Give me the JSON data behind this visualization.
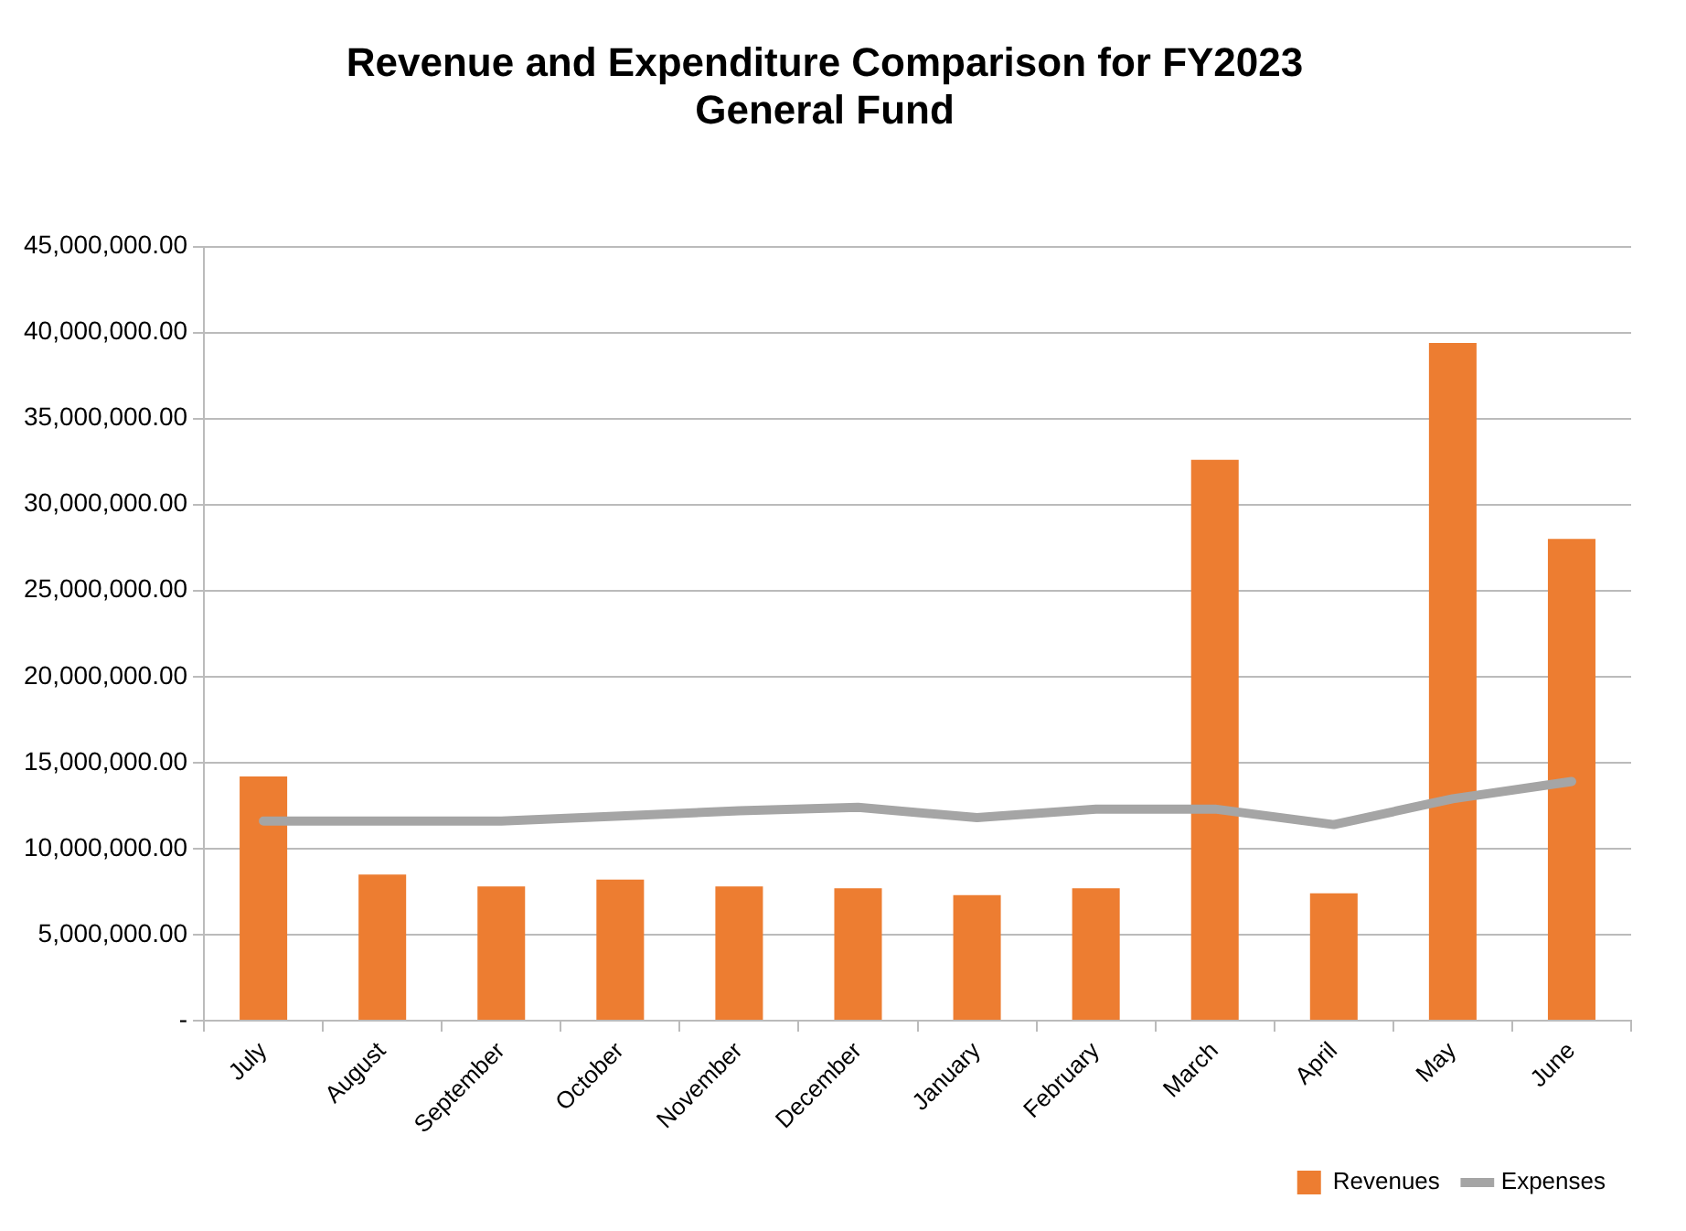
{
  "chart_data": {
    "type": "bar",
    "title": "Revenue and Expenditure Comparison for FY2023",
    "subtitle": "General Fund",
    "categories": [
      "July",
      "August",
      "September",
      "October",
      "November",
      "December",
      "January",
      "February",
      "March",
      "April",
      "May",
      "June"
    ],
    "series": [
      {
        "name": "Revenues",
        "color": "#ed7d31",
        "values": [
          14200000,
          8500000,
          7800000,
          8200000,
          7800000,
          7700000,
          7300000,
          7700000,
          32600000,
          7400000,
          39400000,
          28000000
        ]
      },
      {
        "name": "Expenses",
        "type": "line",
        "color": "#a5a5a5",
        "values": [
          11600000,
          11600000,
          11600000,
          11900000,
          12200000,
          12400000,
          11800000,
          12300000,
          12300000,
          11400000,
          12900000,
          13900000
        ]
      }
    ],
    "ylim": [
      0,
      45000000
    ],
    "yticks": [
      {
        "value": 0,
        "label": "-"
      },
      {
        "value": 5000000,
        "label": "5,000,000.00"
      },
      {
        "value": 10000000,
        "label": "10,000,000.00"
      },
      {
        "value": 15000000,
        "label": "15,000,000.00"
      },
      {
        "value": 20000000,
        "label": "20,000,000.00"
      },
      {
        "value": 25000000,
        "label": "25,000,000.00"
      },
      {
        "value": 30000000,
        "label": "30,000,000.00"
      },
      {
        "value": 35000000,
        "label": "35,000,000.00"
      },
      {
        "value": 40000000,
        "label": "40,000,000.00"
      },
      {
        "value": 45000000,
        "label": "45,000,000.00"
      }
    ],
    "grid": "y",
    "legend": "bottom right",
    "marker": "none"
  }
}
